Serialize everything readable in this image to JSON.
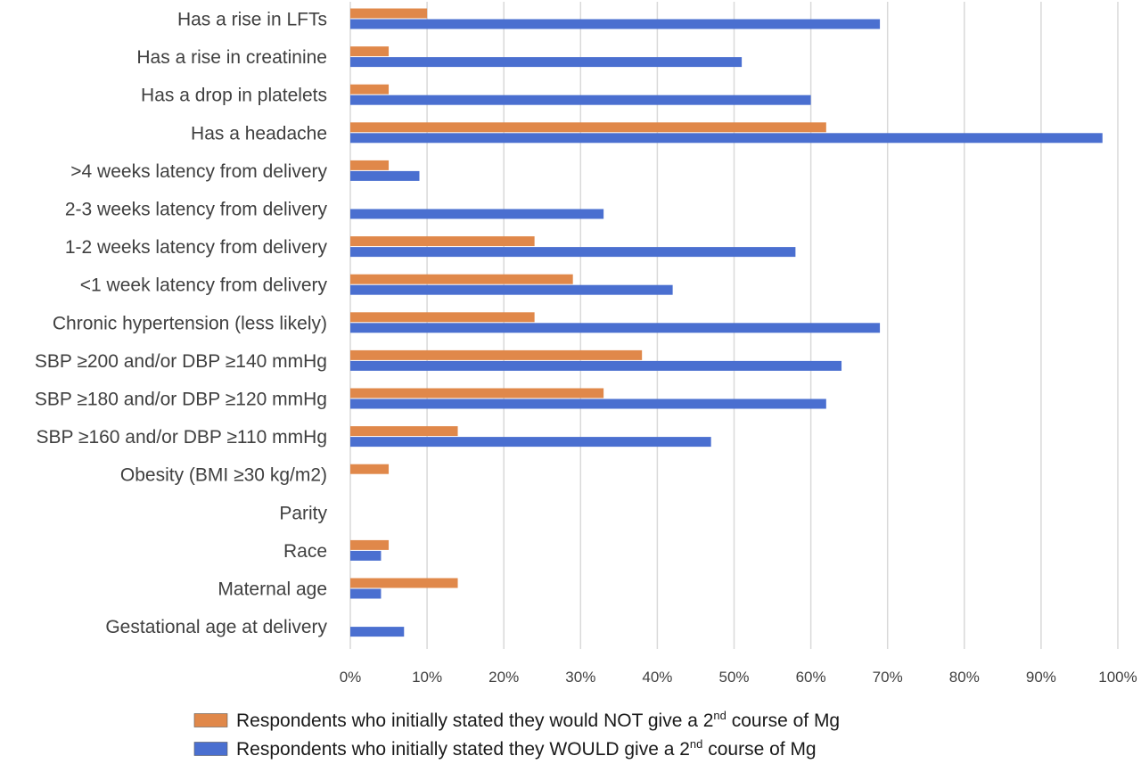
{
  "chart_data": {
    "type": "bar",
    "orientation": "horizontal",
    "title": "",
    "xlabel": "",
    "ylabel": "",
    "xlim": [
      0,
      100
    ],
    "x_ticks": [
      "0%",
      "10%",
      "20%",
      "30%",
      "40%",
      "50%",
      "60%",
      "70%",
      "80%",
      "90%",
      "100%"
    ],
    "grid": true,
    "legend_position": "bottom",
    "categories": [
      "Has a rise in LFTs",
      "Has a rise in creatinine",
      "Has a drop in platelets",
      "Has a headache",
      ">4 weeks latency from delivery",
      "2-3 weeks latency from delivery",
      "1-2 weeks latency from delivery",
      "<1 week latency from delivery",
      "Chronic hypertension (less likely)",
      "SBP ≥200 and/or DBP ≥140 mmHg",
      "SBP ≥180 and/or DBP ≥120 mmHg",
      "SBP ≥160 and/or DBP ≥110 mmHg",
      "Obesity (BMI ≥30 kg/m2)",
      "Parity",
      "Race",
      "Maternal age",
      "Gestational age at delivery"
    ],
    "series": [
      {
        "name": "Respondents who initially stated they would NOT give a 2nd course of Mg",
        "legend_parts": [
          "Respondents who initially stated they would NOT give a 2",
          "nd",
          " course of Mg"
        ],
        "color": "#e0884a",
        "values": [
          10,
          5,
          5,
          62,
          5,
          0,
          24,
          29,
          24,
          38,
          33,
          14,
          5,
          0,
          5,
          14,
          0
        ]
      },
      {
        "name": "Respondents who initially stated they WOULD give a 2nd course of Mg",
        "legend_parts": [
          "Respondents who initially stated they WOULD give a 2",
          "nd",
          " course of Mg"
        ],
        "color": "#4a6fd0",
        "values": [
          69,
          51,
          60,
          98,
          9,
          33,
          58,
          42,
          69,
          64,
          62,
          47,
          0,
          0,
          4,
          4,
          7
        ]
      }
    ]
  }
}
